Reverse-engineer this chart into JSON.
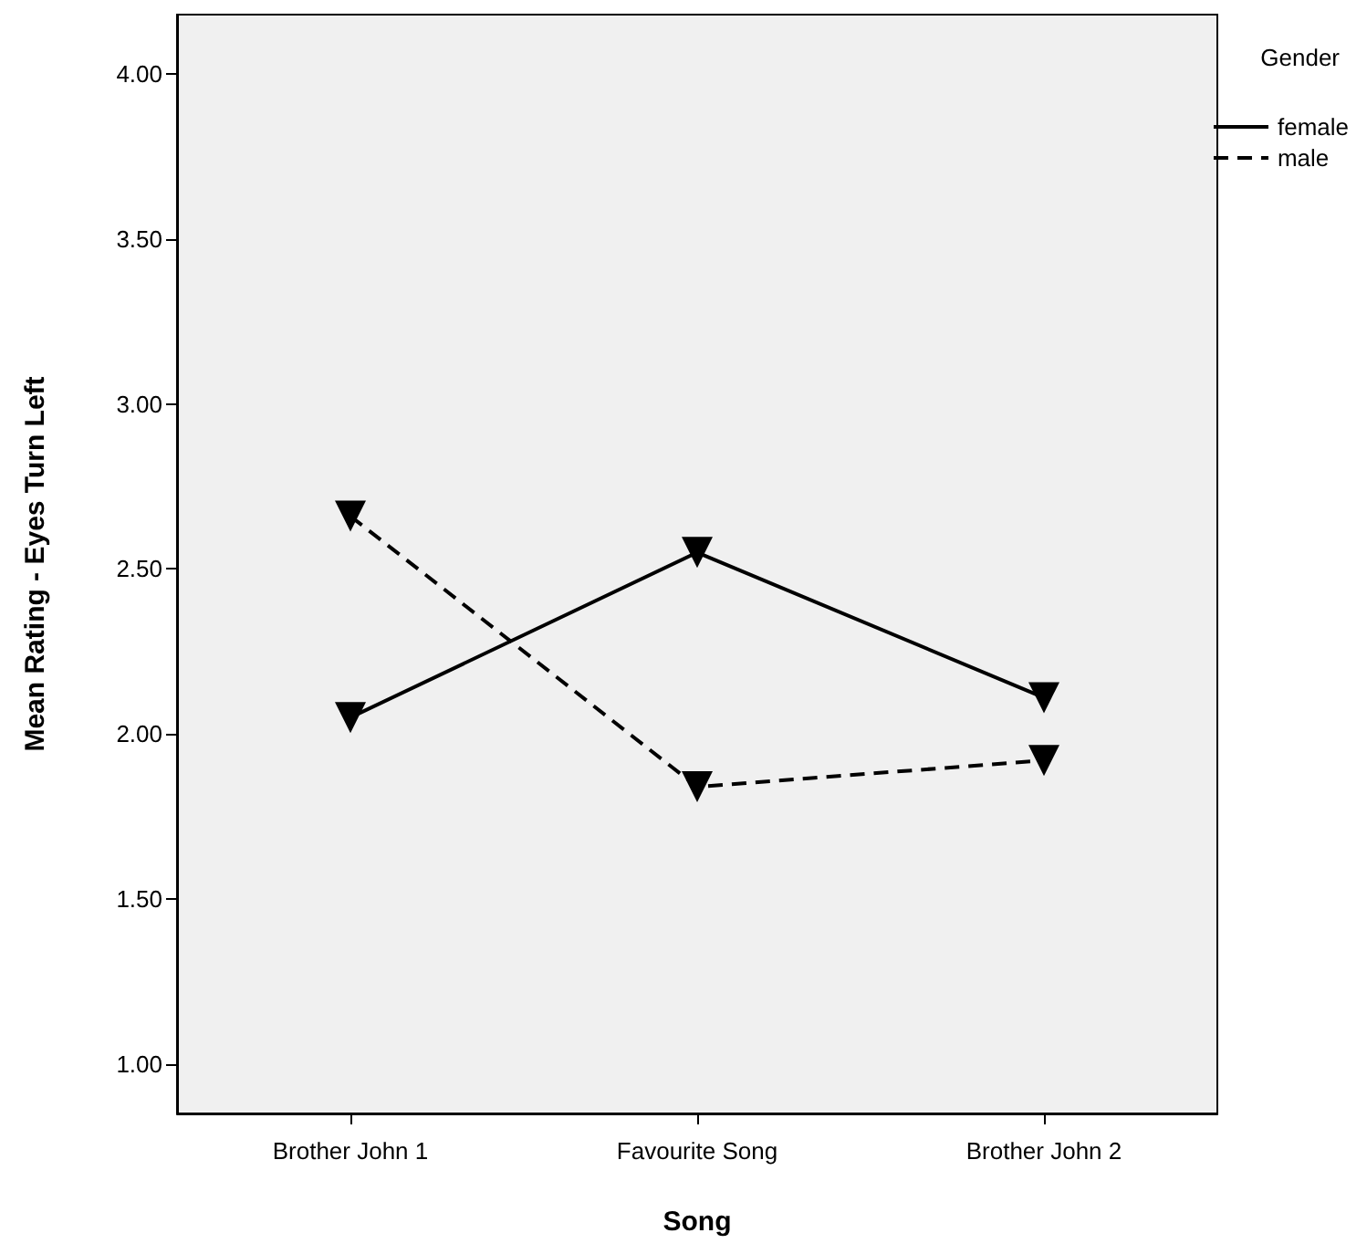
{
  "chart_data": {
    "type": "line",
    "xlabel": "Song",
    "ylabel": "Mean Rating - Eyes Turn Left",
    "legend_title": "Gender",
    "categories": [
      "Brother John 1",
      "Favourite Song",
      "Brother John 2"
    ],
    "series": [
      {
        "name": "female",
        "color": "#000000",
        "line_style": "solid",
        "values": [
          2.05,
          2.55,
          2.11
        ]
      },
      {
        "name": "male",
        "color": "#000000",
        "line_style": "dashed",
        "values": [
          2.66,
          1.84,
          1.92
        ]
      }
    ],
    "ylim": [
      0.85,
      4.18
    ],
    "yticks": [
      {
        "value": 1,
        "label": "1.00"
      },
      {
        "value": 1.5,
        "label": "1.50"
      },
      {
        "value": 2,
        "label": "2.00"
      },
      {
        "value": 2.5,
        "label": "2.50"
      },
      {
        "value": 3,
        "label": "3.00"
      },
      {
        "value": 3.5,
        "label": "3.50"
      },
      {
        "value": 4,
        "label": "4.00"
      }
    ],
    "marker": "triangle",
    "grid": false,
    "legend": "top right"
  }
}
